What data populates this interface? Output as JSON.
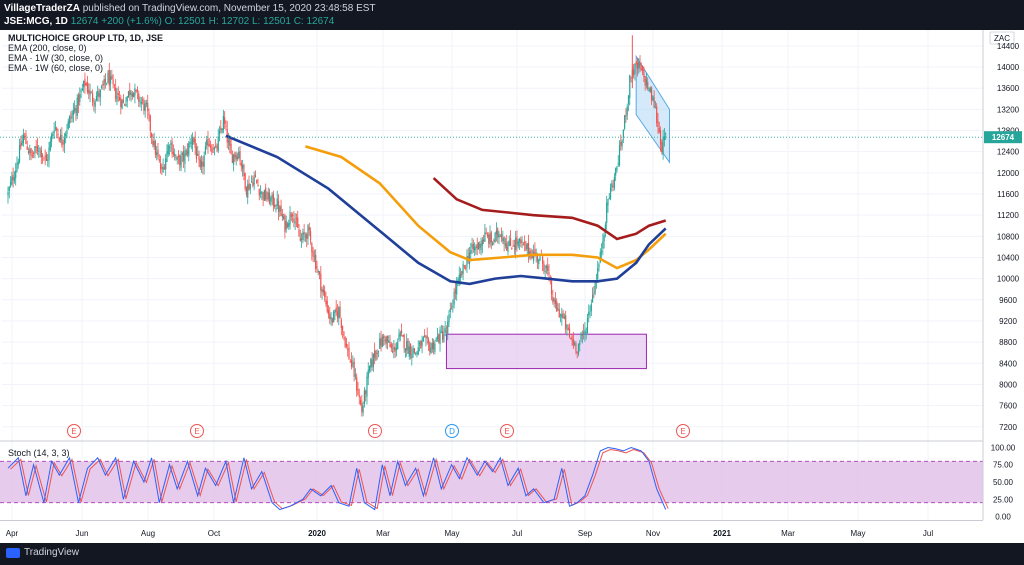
{
  "header": {
    "publisher": "VillageTraderZA",
    "published_text": "published on TradingView.com, November 15, 2020 23:48:58 EST",
    "symbol_line": {
      "symbol": "JSE:MCG, 1D",
      "last": "12674",
      "change": "+200 (+1.6%)",
      "open": "O: 12501",
      "high": "H: 12702",
      "low": "L: 12501",
      "close": "C: 12674"
    }
  },
  "legend": {
    "title": "MULTICHOICE GROUP LTD, 1D, JSE",
    "lines": [
      "EMA (200, close, 0)",
      "EMA · 1W (30, close, 0)",
      "EMA · 1W (60, close, 0)"
    ]
  },
  "stoch_label": "Stoch (14, 3, 3)",
  "currency": "ZAC",
  "price_tag": "12674",
  "footer": {
    "brand": "TradingView"
  },
  "colors": {
    "up": "#26a69a",
    "down": "#ef5350",
    "ema200": "#1f3f98",
    "ema30w": "#f59e0b",
    "ema60w": "#a51c1c",
    "stoch_k": "#2962ff",
    "stoch_d": "#ef5350",
    "box_fill": "#e6c9f0",
    "box_stroke": "#9c27b0",
    "channel": "#9fd0f5",
    "stoch_band": "#e1bee7"
  },
  "chart_data": [
    {
      "type": "candlestick",
      "title": "MULTICHOICE GROUP LTD, 1D, JSE",
      "x_ticks": [
        "Apr",
        "Jun",
        "Aug",
        "Oct",
        "2020",
        "Mar",
        "May",
        "Jul",
        "Sep",
        "Nov",
        "2021",
        "Mar",
        "May",
        "Jul"
      ],
      "y_ticks": [
        7200,
        7600,
        8000,
        8400,
        8800,
        9200,
        9600,
        10000,
        10400,
        10800,
        11200,
        11600,
        12000,
        12400,
        12800,
        13200,
        13600,
        14000,
        14400
      ],
      "ylim": [
        6950,
        14700
      ],
      "last_price": 12674,
      "price_path": [
        [
          0,
          11600
        ],
        [
          6,
          12100
        ],
        [
          12,
          12700
        ],
        [
          18,
          12300
        ],
        [
          24,
          12500
        ],
        [
          30,
          12200
        ],
        [
          36,
          12900
        ],
        [
          42,
          12600
        ],
        [
          48,
          13000
        ],
        [
          54,
          13300
        ],
        [
          60,
          13700
        ],
        [
          66,
          13400
        ],
        [
          72,
          13500
        ],
        [
          78,
          13800
        ],
        [
          84,
          13500
        ],
        [
          90,
          13300
        ],
        [
          96,
          13600
        ],
        [
          102,
          13400
        ],
        [
          108,
          13200
        ],
        [
          114,
          12500
        ],
        [
          120,
          12000
        ],
        [
          126,
          12600
        ],
        [
          132,
          12200
        ],
        [
          138,
          12300
        ],
        [
          144,
          12700
        ],
        [
          150,
          12000
        ],
        [
          156,
          12600
        ],
        [
          162,
          12400
        ],
        [
          168,
          13000
        ],
        [
          174,
          12300
        ],
        [
          180,
          12400
        ],
        [
          186,
          11700
        ],
        [
          192,
          11900
        ],
        [
          198,
          11600
        ],
        [
          204,
          11500
        ],
        [
          210,
          11400
        ],
        [
          216,
          11000
        ],
        [
          222,
          11300
        ],
        [
          228,
          10700
        ],
        [
          234,
          10900
        ],
        [
          240,
          10300
        ],
        [
          246,
          9700
        ],
        [
          252,
          9200
        ],
        [
          258,
          9400
        ],
        [
          264,
          8700
        ],
        [
          270,
          8200
        ],
        [
          276,
          7500
        ],
        [
          282,
          8300
        ],
        [
          288,
          8700
        ],
        [
          294,
          8900
        ],
        [
          300,
          8600
        ],
        [
          306,
          8900
        ],
        [
          312,
          8700
        ],
        [
          318,
          8600
        ],
        [
          324,
          8800
        ],
        [
          330,
          8700
        ],
        [
          336,
          8900
        ],
        [
          342,
          9000
        ],
        [
          348,
          9700
        ],
        [
          354,
          10100
        ],
        [
          360,
          10500
        ],
        [
          366,
          10600
        ],
        [
          372,
          10800
        ],
        [
          378,
          10700
        ],
        [
          384,
          10900
        ],
        [
          390,
          10600
        ],
        [
          396,
          10700
        ],
        [
          402,
          10600
        ],
        [
          408,
          10500
        ],
        [
          414,
          10400
        ],
        [
          420,
          10200
        ],
        [
          426,
          9500
        ],
        [
          432,
          9300
        ],
        [
          438,
          8900
        ],
        [
          444,
          8700
        ],
        [
          450,
          9000
        ],
        [
          456,
          9700
        ],
        [
          462,
          10400
        ],
        [
          468,
          11500
        ],
        [
          474,
          12000
        ],
        [
          480,
          12800
        ],
        [
          486,
          13900
        ],
        [
          492,
          14000
        ],
        [
          498,
          13700
        ],
        [
          504,
          13300
        ],
        [
          510,
          12500
        ],
        [
          513,
          12674
        ]
      ],
      "ema200_path": [
        [
          170,
          12700
        ],
        [
          210,
          12300
        ],
        [
          250,
          11700
        ],
        [
          290,
          10900
        ],
        [
          320,
          10300
        ],
        [
          345,
          9950
        ],
        [
          360,
          9900
        ],
        [
          380,
          10000
        ],
        [
          400,
          10050
        ],
        [
          420,
          10000
        ],
        [
          440,
          9950
        ],
        [
          460,
          9950
        ],
        [
          475,
          10000
        ],
        [
          490,
          10300
        ],
        [
          500,
          10650
        ],
        [
          513,
          10950
        ]
      ],
      "ema30w_path": [
        [
          232,
          12500
        ],
        [
          260,
          12300
        ],
        [
          290,
          11800
        ],
        [
          320,
          11000
        ],
        [
          345,
          10500
        ],
        [
          360,
          10350
        ],
        [
          385,
          10400
        ],
        [
          410,
          10450
        ],
        [
          440,
          10450
        ],
        [
          460,
          10400
        ],
        [
          475,
          10200
        ],
        [
          490,
          10350
        ],
        [
          500,
          10550
        ],
        [
          513,
          10850
        ]
      ],
      "ema60w_path": [
        [
          332,
          11900
        ],
        [
          350,
          11500
        ],
        [
          370,
          11300
        ],
        [
          390,
          11250
        ],
        [
          410,
          11200
        ],
        [
          440,
          11150
        ],
        [
          460,
          11000
        ],
        [
          475,
          10750
        ],
        [
          490,
          10850
        ],
        [
          500,
          11000
        ],
        [
          513,
          11100
        ]
      ],
      "consolidation_box": {
        "x0": 342,
        "x1": 498,
        "y0": 8300,
        "y1": 8950
      },
      "channel": {
        "upper": [
          [
            490,
            14200
          ],
          [
            516,
            13200
          ]
        ],
        "lower": [
          [
            490,
            13100
          ],
          [
            516,
            12200
          ]
        ]
      },
      "event_markers": [
        {
          "label": "E",
          "x": 74
        },
        {
          "label": "E",
          "x": 197
        },
        {
          "label": "E",
          "x": 375
        },
        {
          "label": "D",
          "x": 452
        },
        {
          "label": "E",
          "x": 507
        },
        {
          "label": "E",
          "x": 683
        }
      ]
    },
    {
      "type": "line",
      "title": "Stoch (14, 3, 3)",
      "y_ticks": [
        0,
        25,
        50,
        75,
        100
      ],
      "bands": [
        20,
        80
      ],
      "ylim": [
        -5,
        105
      ],
      "k_path": [
        [
          0,
          70
        ],
        [
          8,
          85
        ],
        [
          14,
          30
        ],
        [
          20,
          75
        ],
        [
          28,
          20
        ],
        [
          34,
          80
        ],
        [
          40,
          60
        ],
        [
          48,
          85
        ],
        [
          55,
          20
        ],
        [
          62,
          70
        ],
        [
          70,
          85
        ],
        [
          76,
          60
        ],
        [
          84,
          85
        ],
        [
          90,
          25
        ],
        [
          98,
          80
        ],
        [
          106,
          50
        ],
        [
          112,
          85
        ],
        [
          118,
          20
        ],
        [
          126,
          75
        ],
        [
          132,
          40
        ],
        [
          140,
          80
        ],
        [
          148,
          30
        ],
        [
          154,
          70
        ],
        [
          162,
          45
        ],
        [
          170,
          80
        ],
        [
          176,
          20
        ],
        [
          184,
          85
        ],
        [
          190,
          40
        ],
        [
          198,
          65
        ],
        [
          206,
          20
        ],
        [
          212,
          10
        ],
        [
          220,
          15
        ],
        [
          230,
          25
        ],
        [
          236,
          40
        ],
        [
          244,
          30
        ],
        [
          252,
          45
        ],
        [
          258,
          20
        ],
        [
          266,
          15
        ],
        [
          272,
          70
        ],
        [
          278,
          20
        ],
        [
          286,
          10
        ],
        [
          292,
          75
        ],
        [
          298,
          30
        ],
        [
          304,
          80
        ],
        [
          310,
          45
        ],
        [
          318,
          70
        ],
        [
          324,
          30
        ],
        [
          332,
          85
        ],
        [
          338,
          40
        ],
        [
          346,
          75
        ],
        [
          352,
          55
        ],
        [
          358,
          85
        ],
        [
          366,
          60
        ],
        [
          372,
          80
        ],
        [
          378,
          65
        ],
        [
          384,
          85
        ],
        [
          390,
          45
        ],
        [
          398,
          70
        ],
        [
          404,
          30
        ],
        [
          410,
          40
        ],
        [
          418,
          20
        ],
        [
          426,
          25
        ],
        [
          432,
          70
        ],
        [
          438,
          15
        ],
        [
          444,
          20
        ],
        [
          450,
          30
        ],
        [
          456,
          60
        ],
        [
          462,
          95
        ],
        [
          468,
          100
        ],
        [
          474,
          98
        ],
        [
          480,
          95
        ],
        [
          486,
          100
        ],
        [
          494,
          95
        ],
        [
          500,
          80
        ],
        [
          506,
          40
        ],
        [
          513,
          10
        ]
      ]
    }
  ]
}
